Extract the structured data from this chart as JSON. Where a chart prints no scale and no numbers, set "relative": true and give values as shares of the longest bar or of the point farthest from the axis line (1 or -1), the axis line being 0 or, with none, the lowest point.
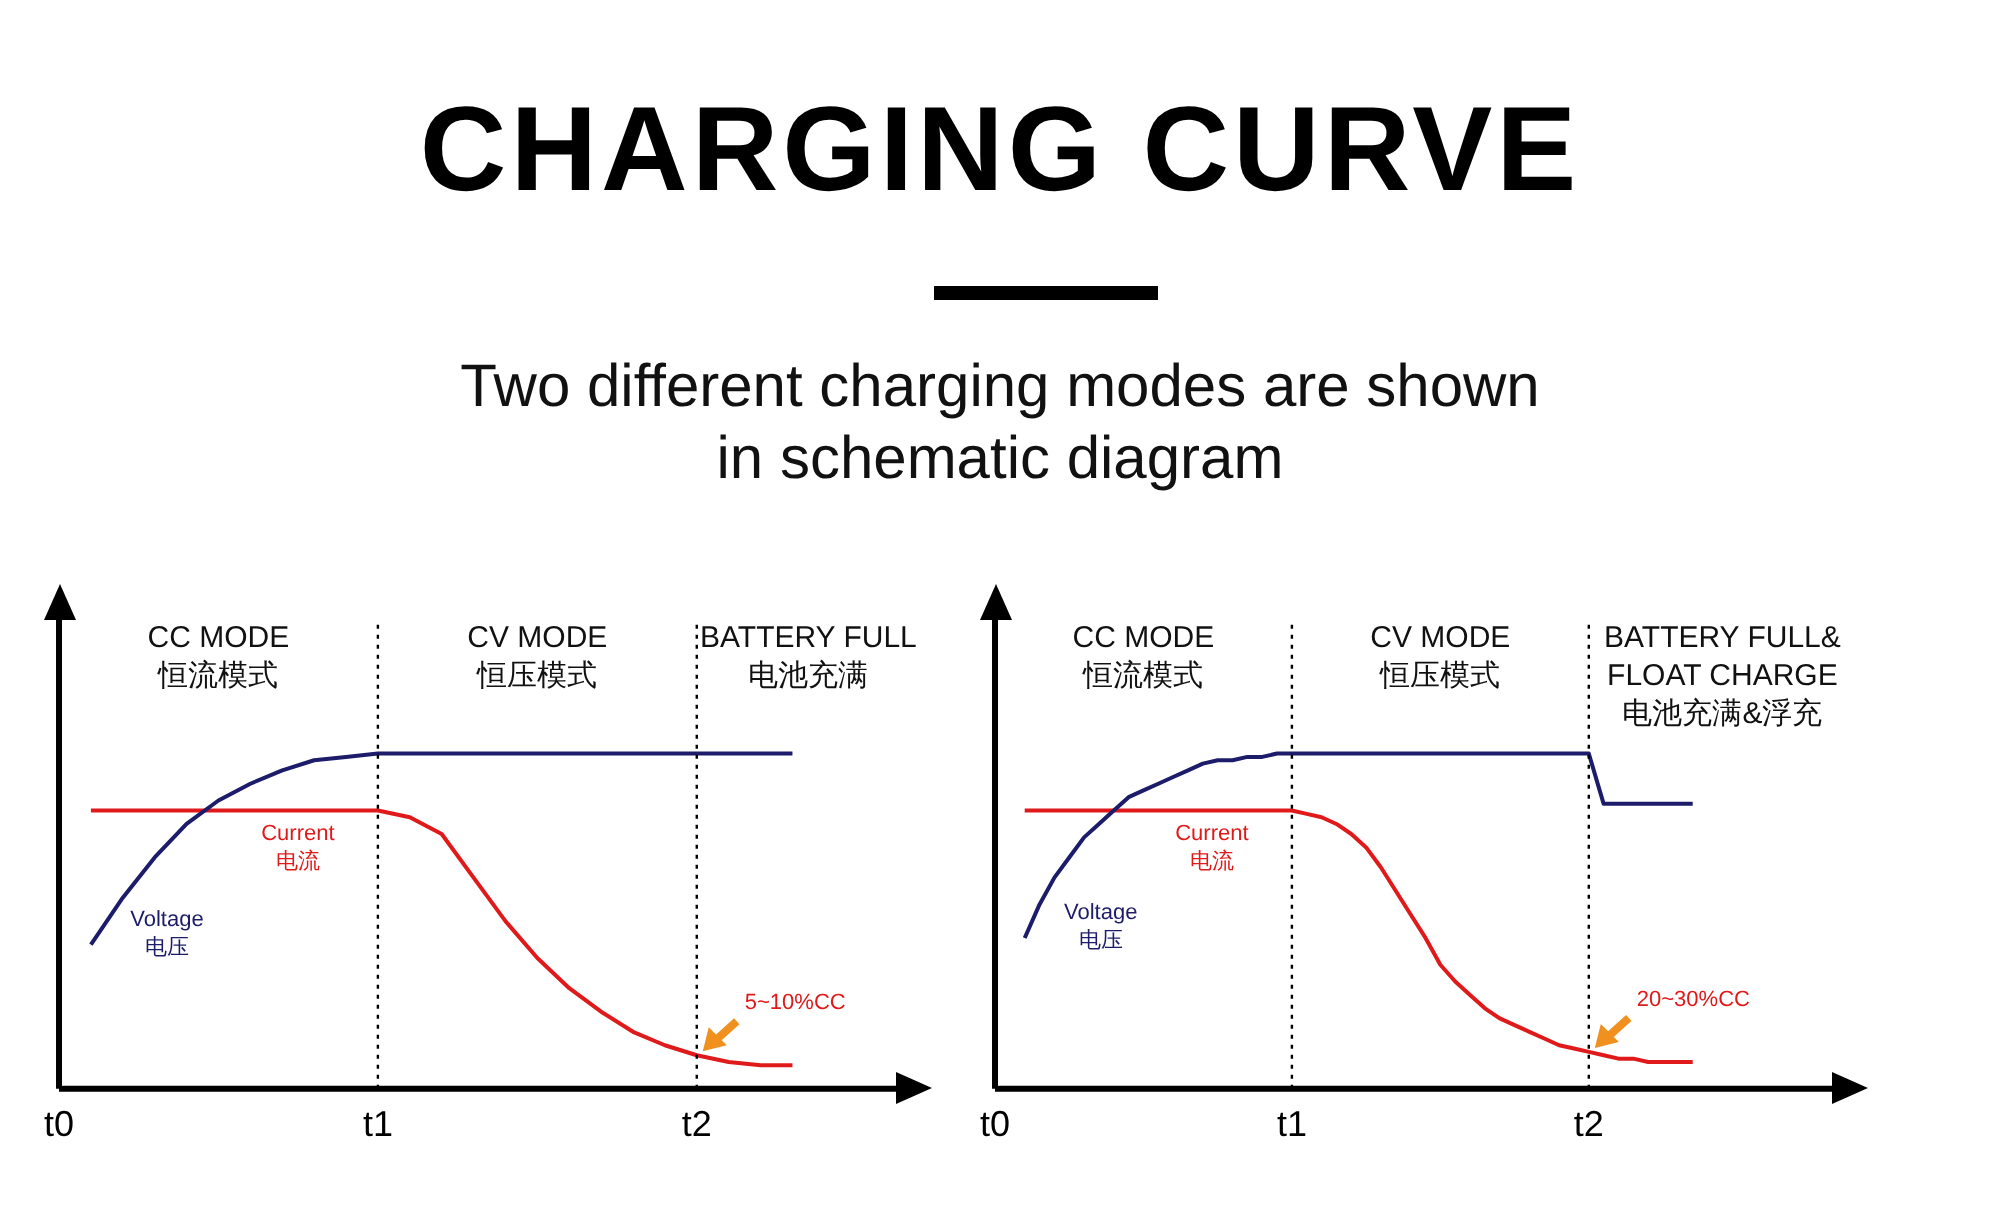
{
  "chart_data": [
    {
      "type": "line",
      "title": "CHARGING CURVE",
      "subtitle": "Two different charging modes are shown\nin schematic diagram",
      "relative": true,
      "tick_labels": "x",
      "grid": false,
      "legend": false,
      "marker": "none",
      "line_style": "solid",
      "categories": [
        "t0",
        null,
        null,
        null,
        null,
        null,
        null,
        null,
        null,
        null,
        "t1",
        null,
        null,
        null,
        null,
        null,
        null,
        null,
        null,
        null,
        "t2",
        null,
        null,
        null,
        null,
        null,
        null,
        null
      ],
      "series": [
        {
          "name": "Voltage 电压",
          "color": "#1c1c6b",
          "values": [
            null,
            0.43,
            0.57,
            0.69,
            0.79,
            0.86,
            0.91,
            0.95,
            0.98,
            0.99,
            1,
            1,
            1,
            1,
            1,
            1,
            1,
            1,
            1,
            1,
            1,
            1,
            1,
            1,
            null,
            null,
            null,
            null
          ]
        },
        {
          "name": "Current 电流",
          "color": "#e01a1a",
          "values": [
            null,
            0.83,
            0.83,
            0.83,
            0.83,
            0.83,
            0.83,
            0.83,
            0.83,
            0.83,
            0.83,
            0.81,
            0.76,
            0.63,
            0.5,
            0.39,
            0.3,
            0.23,
            0.17,
            0.13,
            0.1,
            0.08,
            0.07,
            0.07,
            null,
            null,
            null,
            null
          ]
        }
      ],
      "ref_lines": [
        {
          "axis": "x",
          "value": "t1",
          "color": "#000000",
          "line_style": "dotted"
        },
        {
          "axis": "x",
          "value": "t2",
          "color": "#000000",
          "line_style": "dotted"
        }
      ],
      "annotations": [
        "CC MODE\n恒流模式",
        "CV MODE\n恒压模式",
        "BATTERY FULL\n电池充满",
        {
          "text": "5~10%CC",
          "x": "t2",
          "y": 0.1
        }
      ]
    },
    {
      "type": "line",
      "relative": true,
      "tick_labels": "x",
      "grid": false,
      "legend": false,
      "marker": "none",
      "line_style": "solid",
      "categories": [
        "t0",
        null,
        null,
        null,
        null,
        null,
        null,
        null,
        null,
        null,
        null,
        null,
        null,
        null,
        null,
        null,
        null,
        null,
        null,
        null,
        "t1",
        null,
        null,
        null,
        null,
        null,
        null,
        null,
        null,
        null,
        null,
        null,
        null,
        null,
        null,
        null,
        null,
        null,
        null,
        null,
        "t2",
        null,
        null,
        null,
        null,
        null,
        null,
        null,
        null,
        null,
        null,
        null,
        null,
        null,
        null,
        null,
        null,
        null,
        null
      ],
      "series": [
        {
          "name": "Voltage 电压",
          "color": "#1c1c6b",
          "values": [
            null,
            null,
            0.45,
            0.55,
            0.63,
            0.69,
            0.75,
            0.79,
            0.83,
            0.87,
            0.89,
            0.91,
            0.93,
            0.95,
            0.97,
            0.98,
            0.98,
            0.99,
            0.99,
            1,
            1,
            1,
            1,
            1,
            1,
            1,
            1,
            1,
            1,
            1,
            1,
            1,
            1,
            1,
            1,
            1,
            1,
            1,
            1,
            1,
            1,
            0.85,
            0.85,
            0.85,
            0.85,
            0.85,
            0.85,
            0.85,
            null,
            null,
            null,
            null,
            null,
            null,
            null,
            null,
            null,
            null,
            null
          ]
        },
        {
          "name": "Current 电流",
          "color": "#e01a1a",
          "values": [
            null,
            null,
            0.83,
            0.83,
            0.83,
            0.83,
            0.83,
            0.83,
            0.83,
            0.83,
            0.83,
            0.83,
            0.83,
            0.83,
            0.83,
            0.83,
            0.83,
            0.83,
            0.83,
            0.83,
            0.83,
            0.82,
            0.81,
            0.79,
            0.76,
            0.72,
            0.66,
            0.59,
            0.52,
            0.45,
            0.37,
            0.32,
            0.28,
            0.24,
            0.21,
            0.19,
            0.17,
            0.15,
            0.13,
            0.12,
            0.11,
            0.1,
            0.09,
            0.09,
            0.08,
            0.08,
            0.08,
            0.08,
            null,
            null,
            null,
            null,
            null,
            null,
            null,
            null,
            null,
            null,
            null
          ]
        }
      ],
      "ref_lines": [
        {
          "axis": "x",
          "value": "t1",
          "color": "#000000",
          "line_style": "dotted"
        },
        {
          "axis": "x",
          "value": "t2",
          "color": "#000000",
          "line_style": "dotted"
        }
      ],
      "annotations": [
        "CC MODE\n恒流模式",
        "CV MODE\n恒压模式",
        "BATTERY FULL&\nFLOAT CHARGE\n电池充满&浮充",
        {
          "text": "20~30%CC",
          "x": "t2",
          "y": 0.11
        }
      ]
    }
  ]
}
